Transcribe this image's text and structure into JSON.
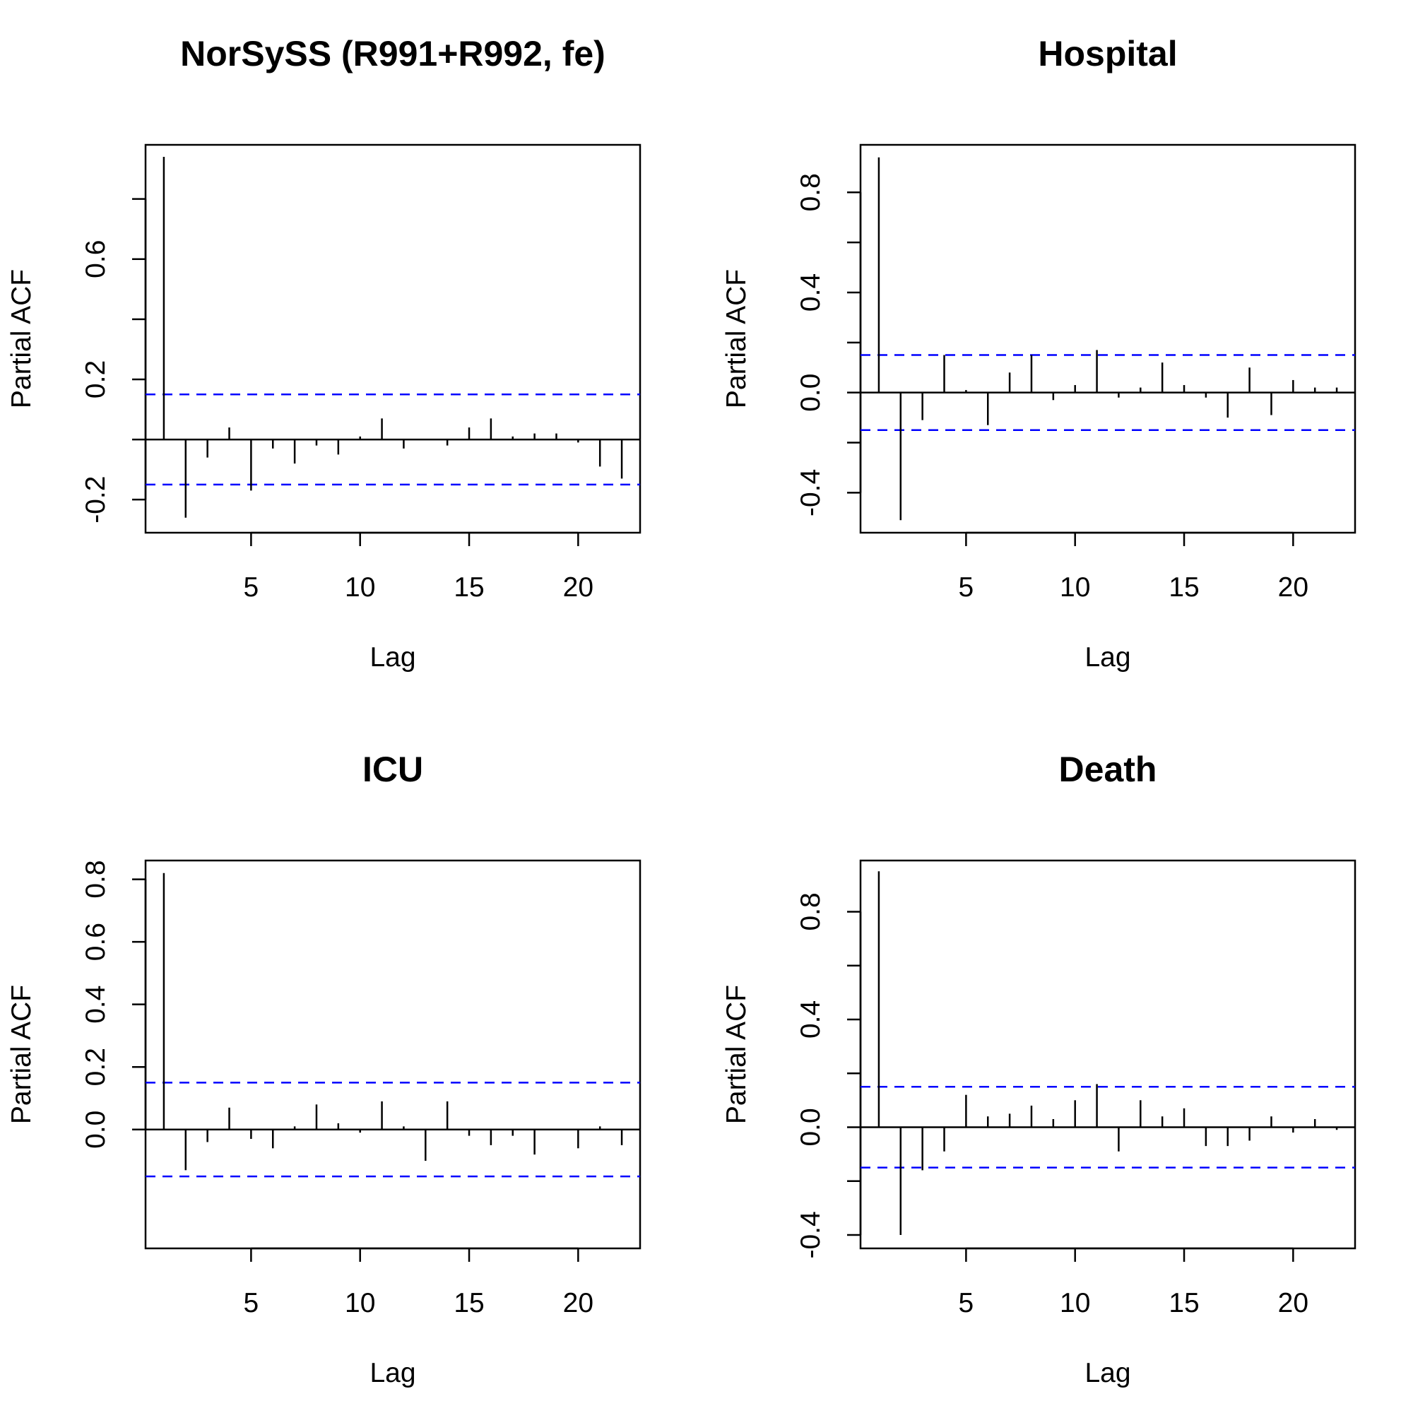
{
  "chart_data": [
    {
      "type": "bar",
      "title": "NorSySS (R991+R992, fe)",
      "xlabel": "Lag",
      "ylabel": "Partial ACF",
      "xlim": [
        0.16,
        22.84
      ],
      "ylim": [
        -0.31,
        0.98
      ],
      "x_ticks": [
        5,
        10,
        15,
        20
      ],
      "x_tick_labels": [
        "5",
        "10",
        "15",
        "20"
      ],
      "y_ticks": [
        -0.2,
        0,
        0.2,
        0.4,
        0.6,
        0.8
      ],
      "y_tick_labels": [
        "-0.2",
        "",
        "0.2",
        "",
        "0.6",
        ""
      ],
      "lags": [
        1,
        2,
        3,
        4,
        5,
        6,
        7,
        8,
        9,
        10,
        11,
        12,
        13,
        14,
        15,
        16,
        17,
        18,
        19,
        20,
        21,
        22
      ],
      "values": [
        0.94,
        -0.26,
        -0.06,
        0.04,
        -0.17,
        -0.03,
        -0.08,
        -0.02,
        -0.05,
        0.01,
        0.07,
        -0.03,
        0.0,
        -0.02,
        0.04,
        0.07,
        0.01,
        0.02,
        0.02,
        -0.01,
        -0.09,
        -0.13
      ],
      "ci": 0.15,
      "grid": false,
      "legend": "none"
    },
    {
      "type": "bar",
      "title": "Hospital",
      "xlabel": "Lag",
      "ylabel": "Partial ACF",
      "xlim": [
        0.16,
        22.84
      ],
      "ylim": [
        -0.56,
        0.99
      ],
      "x_ticks": [
        5,
        10,
        15,
        20
      ],
      "x_tick_labels": [
        "5",
        "10",
        "15",
        "20"
      ],
      "y_ticks": [
        -0.4,
        -0.2,
        0,
        0.2,
        0.4,
        0.6,
        0.8
      ],
      "y_tick_labels": [
        "-0.4",
        "",
        "0.0",
        "",
        "0.4",
        "",
        "0.8"
      ],
      "lags": [
        1,
        2,
        3,
        4,
        5,
        6,
        7,
        8,
        9,
        10,
        11,
        12,
        13,
        14,
        15,
        16,
        17,
        18,
        19,
        20,
        21,
        22
      ],
      "values": [
        0.94,
        -0.51,
        -0.11,
        0.15,
        0.01,
        -0.13,
        0.08,
        0.15,
        -0.03,
        0.03,
        0.17,
        -0.02,
        0.02,
        0.12,
        0.03,
        -0.02,
        -0.1,
        0.1,
        -0.09,
        0.05,
        0.02,
        0.02
      ],
      "ci": 0.15,
      "grid": false,
      "legend": "none"
    },
    {
      "type": "bar",
      "title": "ICU",
      "xlabel": "Lag",
      "ylabel": "Partial ACF",
      "xlim": [
        0.16,
        22.84
      ],
      "ylim": [
        -0.38,
        0.86
      ],
      "x_ticks": [
        5,
        10,
        15,
        20
      ],
      "x_tick_labels": [
        "5",
        "10",
        "15",
        "20"
      ],
      "y_ticks": [
        0,
        0.2,
        0.4,
        0.6,
        0.8
      ],
      "y_tick_labels": [
        "0.0",
        "0.2",
        "0.4",
        "0.6",
        "0.8"
      ],
      "lags": [
        1,
        2,
        3,
        4,
        5,
        6,
        7,
        8,
        9,
        10,
        11,
        12,
        13,
        14,
        15,
        16,
        17,
        18,
        19,
        20,
        21,
        22
      ],
      "values": [
        0.82,
        -0.13,
        -0.04,
        0.07,
        -0.03,
        -0.06,
        0.01,
        0.08,
        0.02,
        -0.01,
        0.09,
        0.01,
        -0.1,
        0.09,
        -0.02,
        -0.05,
        -0.02,
        -0.08,
        0.0,
        -0.06,
        0.01,
        -0.05
      ],
      "ci": 0.15,
      "grid": false,
      "legend": "none"
    },
    {
      "type": "bar",
      "title": "Death",
      "xlabel": "Lag",
      "ylabel": "Partial ACF",
      "xlim": [
        0.16,
        22.84
      ],
      "ylim": [
        -0.45,
        0.99
      ],
      "x_ticks": [
        5,
        10,
        15,
        20
      ],
      "x_tick_labels": [
        "5",
        "10",
        "15",
        "20"
      ],
      "y_ticks": [
        -0.4,
        -0.2,
        0,
        0.2,
        0.4,
        0.6,
        0.8
      ],
      "y_tick_labels": [
        "-0.4",
        "",
        "0.0",
        "",
        "0.4",
        "",
        "0.8"
      ],
      "lags": [
        1,
        2,
        3,
        4,
        5,
        6,
        7,
        8,
        9,
        10,
        11,
        12,
        13,
        14,
        15,
        16,
        17,
        18,
        19,
        20,
        21,
        22
      ],
      "values": [
        0.95,
        -0.4,
        -0.16,
        -0.09,
        0.12,
        0.04,
        0.05,
        0.08,
        0.03,
        0.1,
        0.16,
        -0.09,
        0.1,
        0.04,
        0.07,
        -0.07,
        -0.07,
        -0.05,
        0.04,
        -0.02,
        0.03,
        -0.01
      ],
      "ci": 0.15,
      "grid": false,
      "legend": "none"
    }
  ]
}
